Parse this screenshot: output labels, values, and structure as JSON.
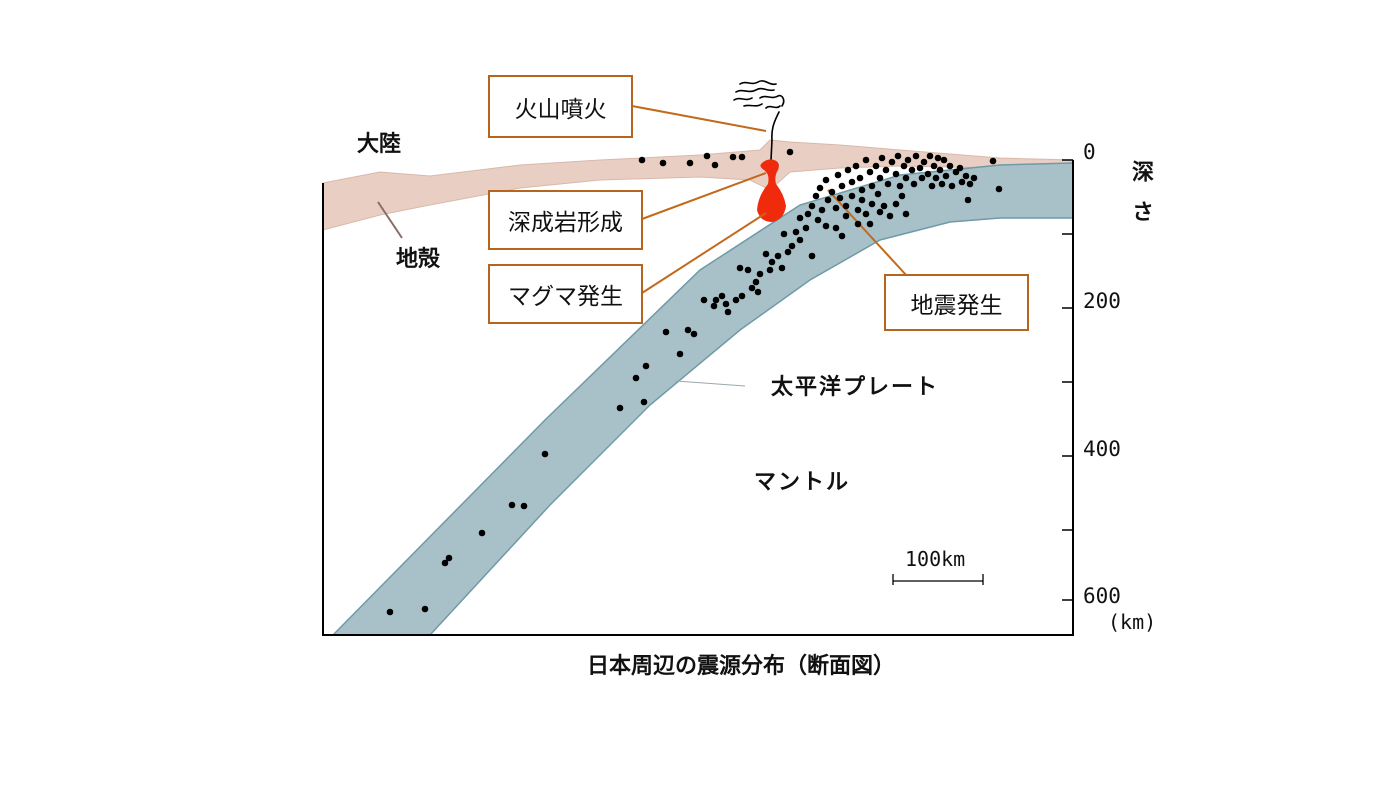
{
  "title": "日本周辺の震源分布（断面図）",
  "labels": {
    "continent": "大陸",
    "crust": "地殻",
    "plate": "太平洋プレート",
    "mantle": "マントル"
  },
  "callouts": {
    "eruption": "火山噴火",
    "plutonic": "深成岩形成",
    "magma": "マグマ発生",
    "earthquake": "地震発生"
  },
  "depth_axis": {
    "title": "深さ",
    "unit": "(km)",
    "tick_labels": [
      "0",
      "200",
      "400",
      "600"
    ]
  },
  "scale_bar": {
    "label": "100km"
  },
  "colors": {
    "crust": "#e9cfc3",
    "plate": "#a8c1c8",
    "plate_edge": "#6f9aa6",
    "magma": "#f02a0c",
    "callout_border": "#b5651d",
    "dots": "#000000"
  },
  "icons": {
    "volcano_smoke": "smoke-plume-icon"
  }
}
